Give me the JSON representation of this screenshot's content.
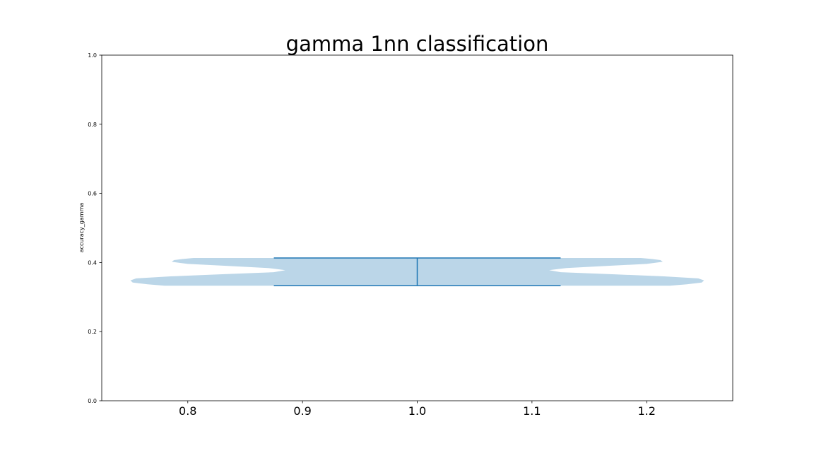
{
  "chart_data": {
    "type": "violin",
    "title": "gamma 1nn classification",
    "xlabel": "",
    "ylabel": "accuracy_gamma",
    "xlim": [
      0.725,
      1.275
    ],
    "ylim": [
      0.0,
      1.0
    ],
    "xticks": [
      "0.8",
      "0.9",
      "1.0",
      "1.1",
      "1.2"
    ],
    "yticks": [
      "0.0",
      "0.2",
      "0.4",
      "0.6",
      "0.8",
      "1.0"
    ],
    "grid": false,
    "violins": [
      {
        "position": 1.0,
        "min": 0.333,
        "max": 0.413,
        "widths": 0.5,
        "show_extrema": true,
        "show_median": false,
        "show_means": true,
        "mean": 0.375,
        "density_profile": [
          {
            "y": 0.333,
            "half_width": 0.22
          },
          {
            "y": 0.337,
            "half_width": 0.235
          },
          {
            "y": 0.342,
            "half_width": 0.248
          },
          {
            "y": 0.348,
            "half_width": 0.25
          },
          {
            "y": 0.354,
            "half_width": 0.245
          },
          {
            "y": 0.36,
            "half_width": 0.215
          },
          {
            "y": 0.366,
            "half_width": 0.17
          },
          {
            "y": 0.372,
            "half_width": 0.125
          },
          {
            "y": 0.378,
            "half_width": 0.115
          },
          {
            "y": 0.384,
            "half_width": 0.13
          },
          {
            "y": 0.39,
            "half_width": 0.165
          },
          {
            "y": 0.396,
            "half_width": 0.2
          },
          {
            "y": 0.402,
            "half_width": 0.214
          },
          {
            "y": 0.407,
            "half_width": 0.212
          },
          {
            "y": 0.41,
            "half_width": 0.205
          },
          {
            "y": 0.413,
            "half_width": 0.195
          }
        ]
      }
    ],
    "colors": {
      "body": "#1f77b4",
      "lines": "#1f77b4",
      "axes": "#000000"
    }
  }
}
